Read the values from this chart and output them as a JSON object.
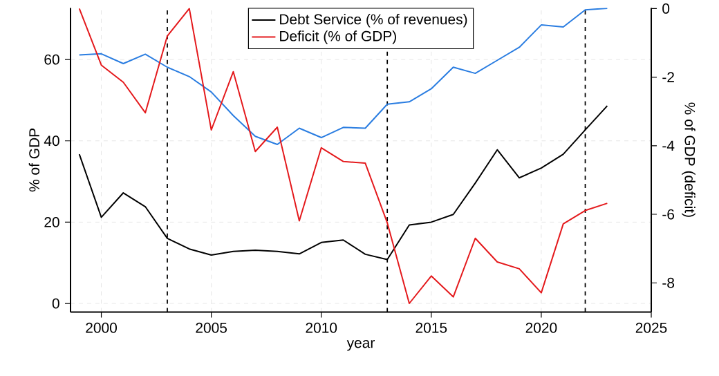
{
  "chart_data": {
    "type": "line",
    "xlabel": "year",
    "ylabel": "% of GDP",
    "y2label": "% of GDP (deficit)",
    "x": [
      1999,
      2000,
      2001,
      2002,
      2003,
      2004,
      2005,
      2006,
      2007,
      2008,
      2009,
      2010,
      2011,
      2012,
      2013,
      2014,
      2015,
      2016,
      2017,
      2018,
      2019,
      2020,
      2021,
      2022,
      2023
    ],
    "series": [
      {
        "color": "#2a7de1",
        "values": [
          61.1,
          61.4,
          59.0,
          61.3,
          58.1,
          55.8,
          52.0,
          46.2,
          41.1,
          39.1,
          43.1,
          40.8,
          43.3,
          43.1,
          49.0,
          49.6,
          52.8,
          58.1,
          56.6,
          59.8,
          63.0,
          68.5,
          68.0,
          72.2,
          72.6
        ]
      },
      {
        "name": "Debt Service (% of revenues)",
        "color": "#000000",
        "values": [
          36.7,
          21.2,
          27.2,
          23.8,
          16.0,
          13.4,
          11.9,
          12.8,
          13.1,
          12.8,
          12.2,
          15.0,
          15.6,
          12.1,
          10.8,
          19.3,
          20.0,
          21.9,
          29.6,
          37.8,
          30.9,
          33.3,
          36.7,
          42.7,
          48.6
        ]
      },
      {
        "name": "Deficit (% of GDP)",
        "color": "#e4191c",
        "axis": "y2",
        "values": [
          0.0,
          -1.65,
          -2.15,
          -3.04,
          -0.8,
          0.0,
          -3.54,
          -1.84,
          -4.17,
          -3.46,
          -6.19,
          -4.06,
          -4.46,
          -4.51,
          -6.25,
          -8.6,
          -7.8,
          -8.41,
          -6.7,
          -7.39,
          -7.59,
          -8.29,
          -6.28,
          -5.89,
          -5.68
        ]
      }
    ],
    "xlim": [
      1998.6,
      2025
    ],
    "xticks": [
      2000,
      2005,
      2010,
      2015,
      2020,
      2025
    ],
    "ylim": [
      -2.1,
      72.7
    ],
    "yticks": [
      0,
      20,
      40,
      60
    ],
    "y2lim": [
      -8.85,
      0.02
    ],
    "y2ticks": [
      0,
      -2,
      -4,
      -6,
      -8
    ],
    "ref_lines": [
      {
        "axis": "x",
        "value": 2003,
        "color": "#000000",
        "line_style": "dashed"
      },
      {
        "axis": "x",
        "value": 2013,
        "color": "#000000",
        "line_style": "dashed"
      },
      {
        "axis": "x",
        "value": 2022,
        "color": "#000000",
        "line_style": "dashed"
      }
    ],
    "grid": true,
    "legend": "top",
    "line_style": "solid",
    "marker": "none"
  }
}
